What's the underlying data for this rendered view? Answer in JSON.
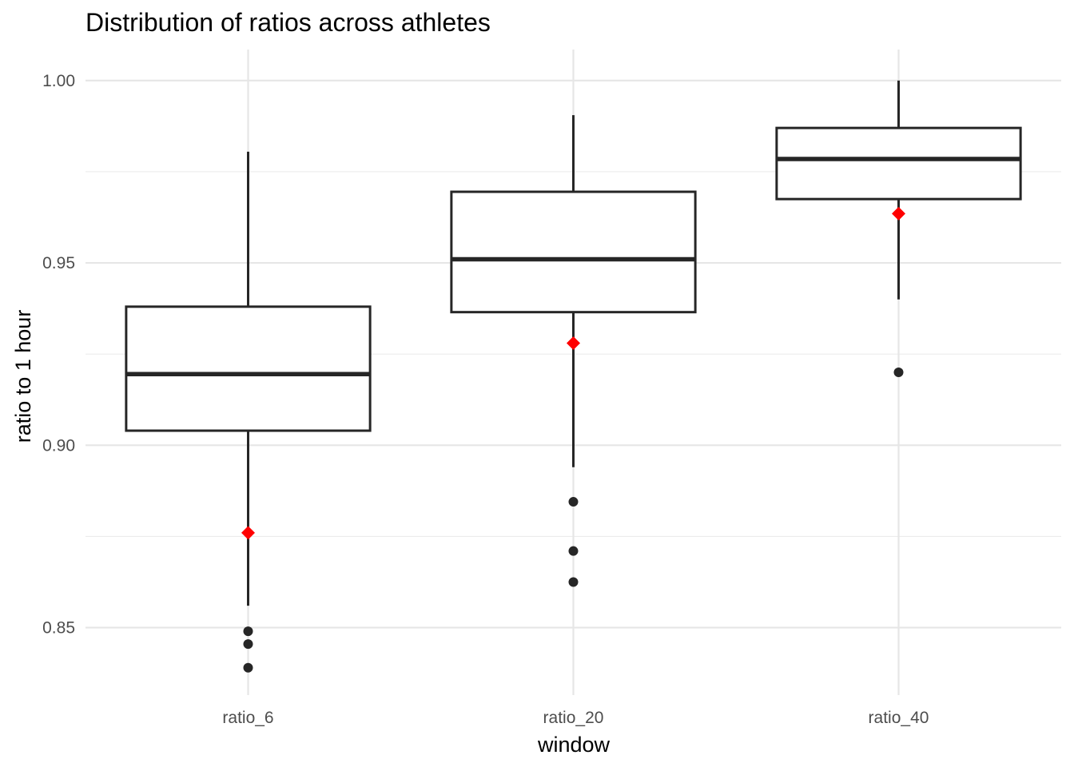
{
  "chart_data": {
    "type": "boxplot",
    "title": "Distribution of ratios across athletes",
    "xlabel": "window",
    "ylabel": "ratio to 1 hour",
    "categories": [
      "ratio_6",
      "ratio_20",
      "ratio_40"
    ],
    "ylim": [
      0.8315,
      1.0085
    ],
    "yticks": [
      0.85,
      0.9,
      0.95,
      1.0
    ],
    "ytick_labels": [
      "0.85",
      "0.90",
      "0.95",
      "1.00"
    ],
    "grid": true,
    "boxes": [
      {
        "category": "ratio_6",
        "whisker_low": 0.856,
        "q1": 0.904,
        "median": 0.9195,
        "q3": 0.938,
        "whisker_high": 0.9805,
        "outliers": [
          0.849,
          0.8455,
          0.839
        ],
        "mean": 0.876
      },
      {
        "category": "ratio_20",
        "whisker_low": 0.894,
        "q1": 0.9365,
        "median": 0.951,
        "q3": 0.9695,
        "whisker_high": 0.9905,
        "outliers": [
          0.8845,
          0.871,
          0.8625
        ],
        "mean": 0.928
      },
      {
        "category": "ratio_40",
        "whisker_low": 0.94,
        "q1": 0.9675,
        "median": 0.9785,
        "q3": 0.987,
        "whisker_high": 1.0,
        "outliers": [
          0.92
        ],
        "mean": 0.9635
      }
    ],
    "colors": {
      "box_line": "#262626",
      "mean_marker": "#ff0000",
      "outlier": "#262626",
      "grid": "#e6e6e6"
    }
  }
}
